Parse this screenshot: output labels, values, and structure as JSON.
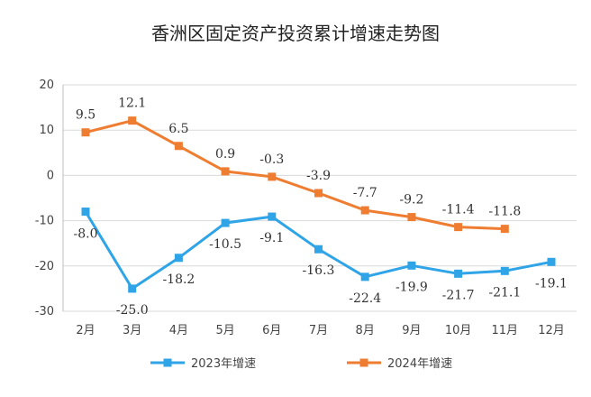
{
  "chart_data": {
    "type": "line",
    "title": "香洲区固定资产投资累计增速走势图",
    "categories": [
      "2月",
      "3月",
      "4月",
      "5月",
      "6月",
      "7月",
      "8月",
      "9月",
      "10月",
      "11月",
      "12月"
    ],
    "ylim": [
      -30,
      20
    ],
    "yticks": [
      20,
      10,
      0,
      -10,
      -20,
      -30
    ],
    "grid": true,
    "legend": "bottom",
    "series": [
      {
        "name": "2023年增速",
        "color": "#2FA4E7",
        "marker": "square",
        "values": [
          -8.0,
          -25.0,
          -18.2,
          -10.5,
          -9.1,
          -16.3,
          -22.4,
          -19.9,
          -21.7,
          -21.1,
          -19.1
        ],
        "labels": [
          "-8.0",
          "-25.0",
          "-18.2",
          "-10.5",
          "-9.1",
          "-16.3",
          "-22.4",
          "-19.9",
          "-21.7",
          "-21.1",
          "-19.1"
        ]
      },
      {
        "name": "2024年增速",
        "color": "#EE7D31",
        "marker": "square",
        "values": [
          9.5,
          12.1,
          6.5,
          0.9,
          -0.3,
          -3.9,
          -7.7,
          -9.2,
          -11.4,
          -11.8,
          null
        ],
        "labels": [
          "9.5",
          "12.1",
          "6.5",
          "0.9",
          "-0.3",
          "-3.9",
          "-7.7",
          "-9.2",
          "-11.4",
          "-11.8",
          ""
        ]
      }
    ]
  }
}
